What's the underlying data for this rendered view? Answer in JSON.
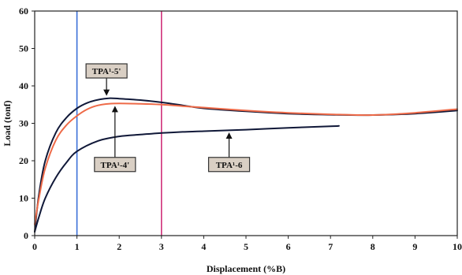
{
  "chart_data": {
    "type": "line",
    "xlabel": "Displacement (%B)",
    "ylabel": "Load (tonf)",
    "xlim": [
      0,
      10
    ],
    "ylim": [
      0,
      60
    ],
    "xticks": [
      "0",
      "1",
      "2",
      "3",
      "4",
      "5",
      "6",
      "7",
      "8",
      "9",
      "10"
    ],
    "yticks": [
      "0",
      "10",
      "20",
      "30",
      "40",
      "50",
      "60"
    ],
    "grid": false,
    "vertical_lines": [
      {
        "x": 1,
        "color": "#3a6fd8"
      },
      {
        "x": 3,
        "color": "#d0317a"
      }
    ],
    "series": [
      {
        "id": "tpa5",
        "color": "#101838",
        "x": [
          0,
          0.1,
          0.25,
          0.5,
          0.75,
          1.0,
          1.25,
          1.5,
          1.75,
          2.0,
          2.5,
          3.0,
          3.5,
          4.0,
          5.0,
          6.0,
          7.0,
          8.0,
          9.0,
          10.0
        ],
        "y": [
          1,
          11,
          20,
          27.5,
          31.5,
          34,
          35.5,
          36.3,
          36.7,
          36.6,
          36.2,
          35.6,
          34.8,
          34.0,
          33.2,
          32.6,
          32.3,
          32.2,
          32.6,
          33.4
        ]
      },
      {
        "id": "tpa4",
        "color": "#ee6a48",
        "x": [
          0,
          0.1,
          0.25,
          0.5,
          0.75,
          1.0,
          1.25,
          1.5,
          1.75,
          2.0,
          2.5,
          3.0,
          3.5,
          4.0,
          5.0,
          6.0,
          7.0,
          8.0,
          9.0,
          10.0
        ],
        "y": [
          3,
          10,
          18,
          25.5,
          29.5,
          32,
          33.8,
          34.8,
          35.2,
          35.3,
          35.2,
          35.0,
          34.6,
          34.2,
          33.4,
          32.8,
          32.4,
          32.2,
          32.8,
          33.8
        ]
      },
      {
        "id": "tpa6",
        "color": "#101838",
        "x": [
          0,
          0.1,
          0.25,
          0.5,
          0.75,
          1.0,
          1.5,
          2.0,
          2.5,
          3.0,
          3.5,
          4.0,
          5.0,
          6.0,
          7.0,
          7.2
        ],
        "y": [
          1,
          5,
          10,
          15.5,
          19.5,
          22.5,
          25.3,
          26.5,
          27.0,
          27.4,
          27.7,
          27.9,
          28.3,
          28.8,
          29.2,
          29.3
        ]
      }
    ],
    "annotations": [
      {
        "id": "tpa5",
        "text": "TPA¹-5'",
        "label_at": [
          1.7,
          44
        ],
        "arrow_to": [
          1.7,
          36.7
        ]
      },
      {
        "id": "tpa4",
        "text": "TPA¹-4'",
        "label_at": [
          1.9,
          19
        ],
        "arrow_to": [
          1.9,
          35.3
        ]
      },
      {
        "id": "tpa6",
        "text": "TPA¹-6",
        "label_at": [
          4.6,
          19
        ],
        "arrow_to": [
          4.6,
          28.2
        ]
      }
    ]
  }
}
